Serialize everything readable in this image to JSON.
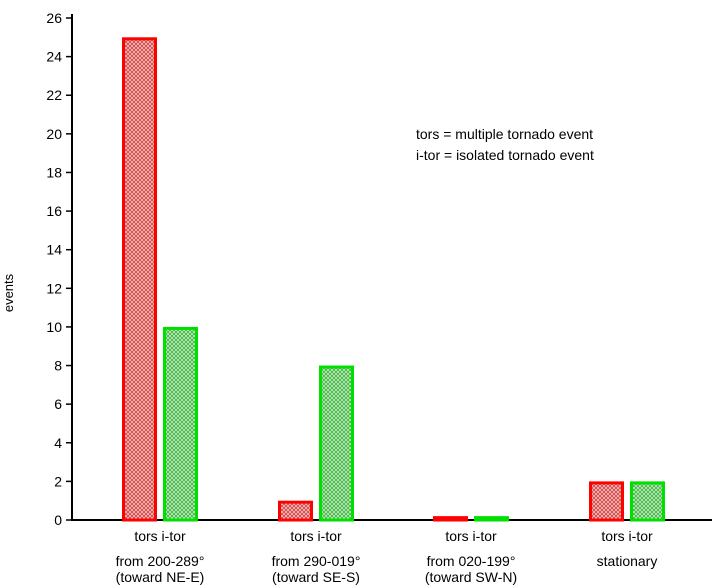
{
  "chart_data": {
    "type": "bar",
    "title": "",
    "xlabel": "",
    "ylabel": "events",
    "ylim": [
      0,
      26
    ],
    "yticks": [
      0,
      2,
      4,
      6,
      8,
      10,
      12,
      14,
      16,
      18,
      20,
      22,
      24,
      26
    ],
    "grid": false,
    "groups": [
      {
        "series_labels": "tors i-tor",
        "lines": [
          "from 200-289°",
          "(toward NE-E)"
        ]
      },
      {
        "series_labels": "tors i-tor",
        "lines": [
          "from 290-019°",
          "(toward SE-S)"
        ]
      },
      {
        "series_labels": "tors i-tor",
        "lines": [
          "from 020-199°",
          "(toward SW-N)"
        ]
      },
      {
        "series_labels": "tors i-tor",
        "lines": [
          "stationary"
        ]
      }
    ],
    "series": [
      {
        "name": "tors",
        "values": [
          25,
          1,
          0.2,
          2
        ]
      },
      {
        "name": "i-tor",
        "values": [
          10,
          8,
          0.2,
          2
        ]
      }
    ],
    "colors": {
      "tors": "#ff0000",
      "i-tor": "#00e000",
      "tors_fill": "#f0a8a8",
      "i-tor_fill": "#a8eca8"
    },
    "legend": {
      "position": "top-right",
      "lines": [
        "tors = multiple tornado event",
        "i-tor = isolated tornado event"
      ]
    }
  }
}
